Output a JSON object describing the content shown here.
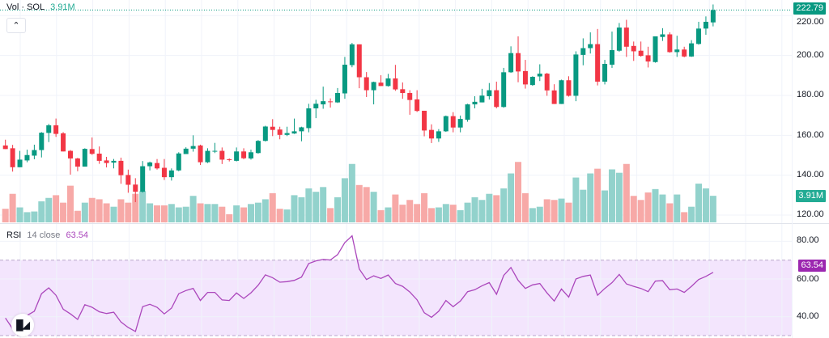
{
  "legend": {
    "vol_label": "Vol · SOL",
    "vol_value": "3.91M"
  },
  "rsi_legend": {
    "name": "RSI",
    "params": "14 close",
    "value": "63.54"
  },
  "badges": {
    "price": "222.79",
    "volume": "3.91M",
    "rsi": "63.54"
  },
  "price_axis": [
    "220.00",
    "200.00",
    "180.00",
    "160.00",
    "140.00",
    "120.00"
  ],
  "rsi_axis": [
    "80.00",
    "60.00",
    "40.00"
  ],
  "logo_text": "TV",
  "colors": {
    "up": "#089981",
    "down": "#F23645",
    "vol_up": "#92D2CC",
    "vol_down": "#F7A9A7",
    "rsi": "#AB47BC",
    "rsi_badge": "#9C27B0",
    "rsi_band": "#F3E5FD"
  },
  "chart_data": {
    "type": "candlestick",
    "symbol": "SOL",
    "price_range": [
      120,
      226
    ],
    "rsi_range": [
      30,
      85
    ],
    "rsi_bands": [
      30,
      70
    ],
    "ohlc": [
      [
        154.9,
        157.8,
        153.1,
        153.1
      ],
      [
        153.5,
        155.2,
        141.8,
        144.0
      ],
      [
        144.0,
        152.2,
        144.0,
        147.8
      ],
      [
        147.4,
        152.8,
        146.5,
        150.1
      ],
      [
        149.8,
        155.3,
        148.0,
        152.6
      ],
      [
        152.6,
        161.6,
        148.9,
        161.3
      ],
      [
        161.2,
        165.7,
        156.6,
        165.0
      ],
      [
        165.0,
        168.4,
        159.2,
        160.7
      ],
      [
        161.0,
        161.6,
        151.9,
        151.9
      ],
      [
        152.2,
        152.6,
        140.3,
        148.4
      ],
      [
        148.4,
        148.7,
        142.0,
        144.3
      ],
      [
        144.3,
        153.5,
        144.3,
        153.2
      ],
      [
        153.1,
        158.9,
        150.2,
        150.7
      ],
      [
        150.8,
        154.4,
        145.7,
        147.2
      ],
      [
        147.4,
        149.2,
        143.9,
        146.1
      ],
      [
        146.3,
        148.1,
        143.4,
        147.2
      ],
      [
        147.2,
        148.8,
        135.7,
        140.0
      ],
      [
        140.1,
        142.8,
        131.2,
        135.2
      ],
      [
        135.3,
        138.5,
        126.5,
        131.7
      ],
      [
        131.7,
        147.1,
        131.3,
        144.5
      ],
      [
        144.5,
        146.8,
        142.4,
        146.4
      ],
      [
        146.1,
        148.1,
        142.8,
        143.4
      ],
      [
        143.7,
        148.1,
        137.6,
        139.0
      ],
      [
        139.0,
        143.4,
        137.3,
        142.4
      ],
      [
        142.4,
        151.5,
        142.0,
        150.9
      ],
      [
        150.6,
        154.0,
        150.6,
        153.3
      ],
      [
        153.3,
        160.0,
        151.8,
        154.6
      ],
      [
        154.9,
        155.3,
        145.1,
        146.5
      ],
      [
        146.5,
        153.5,
        146.1,
        152.2
      ],
      [
        152.2,
        156.2,
        151.1,
        152.2
      ],
      [
        152.2,
        153.9,
        145.6,
        147.8
      ],
      [
        148.0,
        148.4,
        146.9,
        147.8
      ],
      [
        147.2,
        153.9,
        146.9,
        151.9
      ],
      [
        151.9,
        153.5,
        148.0,
        148.5
      ],
      [
        148.4,
        152.8,
        147.8,
        151.5
      ],
      [
        151.1,
        157.6,
        150.8,
        157.2
      ],
      [
        157.2,
        164.8,
        156.9,
        164.4
      ],
      [
        164.3,
        168.1,
        159.6,
        162.7
      ],
      [
        162.9,
        164.3,
        158.0,
        160.2
      ],
      [
        160.2,
        164.3,
        159.6,
        161.1
      ],
      [
        160.9,
        168.4,
        160.7,
        162.0
      ],
      [
        162.0,
        164.3,
        157.0,
        164.0
      ],
      [
        163.6,
        175.8,
        161.5,
        173.5
      ],
      [
        173.5,
        177.8,
        168.6,
        175.8
      ],
      [
        175.5,
        184.4,
        173.3,
        177.1
      ],
      [
        177.0,
        178.5,
        173.9,
        176.8
      ],
      [
        176.5,
        183.7,
        176.2,
        181.2
      ],
      [
        181.0,
        199.3,
        178.3,
        195.4
      ],
      [
        195.2,
        206.3,
        194.1,
        205.6
      ],
      [
        205.6,
        205.6,
        183.6,
        189.1
      ],
      [
        189.1,
        191.7,
        179.2,
        182.6
      ],
      [
        182.6,
        186.9,
        175.5,
        186.7
      ],
      [
        186.4,
        190.1,
        184.7,
        184.7
      ],
      [
        184.7,
        190.8,
        184.4,
        188.5
      ],
      [
        188.5,
        195.3,
        182.3,
        183.0
      ],
      [
        183.1,
        186.5,
        178.3,
        181.2
      ],
      [
        181.2,
        182.6,
        170.3,
        177.7
      ],
      [
        178.0,
        182.6,
        171.7,
        172.2
      ],
      [
        172.3,
        172.3,
        159.5,
        162.4
      ],
      [
        162.7,
        165.5,
        156.1,
        158.4
      ],
      [
        158.4,
        163.1,
        156.7,
        162.0
      ],
      [
        162.0,
        169.9,
        161.7,
        169.6
      ],
      [
        169.6,
        171.6,
        161.5,
        163.9
      ],
      [
        163.9,
        169.9,
        161.5,
        168.2
      ],
      [
        167.8,
        175.8,
        166.8,
        175.5
      ],
      [
        175.5,
        179.6,
        173.5,
        176.8
      ],
      [
        176.5,
        183.3,
        176.5,
        179.9
      ],
      [
        179.6,
        186.2,
        177.9,
        182.6
      ],
      [
        182.6,
        186.9,
        173.5,
        174.2
      ],
      [
        174.2,
        193.8,
        173.8,
        191.6
      ],
      [
        191.6,
        204.6,
        191.3,
        201.2
      ],
      [
        201.2,
        209.6,
        186.6,
        192.0
      ],
      [
        192.2,
        197.8,
        183.4,
        185.5
      ],
      [
        185.2,
        189.6,
        184.8,
        189.3
      ],
      [
        189.5,
        195.6,
        187.2,
        190.9
      ],
      [
        190.9,
        191.3,
        179.8,
        182.5
      ],
      [
        182.5,
        185.6,
        175.7,
        175.7
      ],
      [
        175.7,
        187.9,
        175.7,
        187.6
      ],
      [
        187.6,
        189.6,
        179.4,
        179.8
      ],
      [
        179.8,
        202.1,
        177.1,
        200.5
      ],
      [
        200.3,
        208.6,
        195.1,
        203.7
      ],
      [
        203.7,
        211.6,
        201.0,
        205.7
      ],
      [
        205.7,
        213.3,
        185.0,
        186.9
      ],
      [
        186.9,
        197.8,
        185.5,
        195.8
      ],
      [
        195.4,
        212.0,
        193.8,
        202.7
      ],
      [
        202.4,
        216.3,
        201.9,
        214.0
      ],
      [
        214.0,
        217.9,
        199.3,
        204.4
      ],
      [
        204.8,
        207.0,
        197.3,
        202.1
      ],
      [
        202.4,
        207.0,
        199.4,
        199.8
      ],
      [
        200.1,
        204.4,
        194.0,
        197.0
      ],
      [
        196.7,
        209.6,
        196.4,
        209.6
      ],
      [
        209.3,
        213.7,
        207.3,
        210.6
      ],
      [
        210.6,
        211.6,
        201.4,
        201.7
      ],
      [
        201.7,
        209.9,
        199.3,
        203.0
      ],
      [
        203.0,
        204.4,
        199.1,
        199.5
      ],
      [
        199.5,
        207.7,
        199.3,
        206.1
      ],
      [
        205.8,
        216.9,
        205.4,
        213.5
      ],
      [
        213.5,
        219.6,
        210.4,
        216.9
      ],
      [
        216.6,
        225.6,
        214.6,
        222.79
      ]
    ],
    "volume_millions": [
      2.0,
      4.2,
      2.2,
      1.5,
      1.6,
      3.1,
      3.6,
      4.0,
      2.9,
      5.4,
      1.7,
      2.9,
      3.6,
      3.4,
      2.8,
      2.3,
      3.4,
      2.9,
      4.2,
      4.6,
      2.8,
      2.5,
      2.5,
      2.7,
      2.2,
      2.3,
      3.9,
      2.8,
      2.7,
      2.7,
      2.3,
      1.2,
      2.5,
      2.2,
      2.7,
      2.9,
      3.4,
      4.3,
      2.0,
      1.9,
      4.0,
      3.7,
      5.0,
      4.5,
      5.2,
      2.1,
      3.7,
      6.5,
      8.6,
      5.5,
      5.2,
      4.5,
      1.8,
      2.2,
      4.1,
      2.6,
      3.3,
      2.7,
      4.3,
      2.1,
      2.2,
      2.7,
      2.6,
      1.8,
      2.9,
      3.7,
      3.3,
      4.2,
      4.0,
      5.0,
      7.2,
      8.9,
      4.3,
      2.1,
      2.3,
      3.4,
      3.3,
      3.5,
      2.9,
      6.6,
      4.8,
      7.2,
      7.9,
      4.7,
      7.8,
      7.3,
      8.6,
      3.9,
      3.3,
      4.4,
      4.9,
      4.1,
      2.8,
      4.1,
      1.5,
      2.3,
      5.7,
      5.0,
      3.91
    ],
    "rsi": [
      39.3,
      33.6,
      38.6,
      40.7,
      42.9,
      52.2,
      55.3,
      51.4,
      44.0,
      41.5,
      38.6,
      46.4,
      45.0,
      42.6,
      41.7,
      42.4,
      37.2,
      34.3,
      32.2,
      45.3,
      46.6,
      45.0,
      41.5,
      44.6,
      52.2,
      53.9,
      55.0,
      48.6,
      52.9,
      52.9,
      48.9,
      48.6,
      52.6,
      49.7,
      52.7,
      56.7,
      62.2,
      60.7,
      58.3,
      58.6,
      59.3,
      61.0,
      68.2,
      69.6,
      70.4,
      70.1,
      72.9,
      79.3,
      82.9,
      65.3,
      59.7,
      61.7,
      60.3,
      62.1,
      57.6,
      56.1,
      53.1,
      49.0,
      42.1,
      39.7,
      42.9,
      48.6,
      45.3,
      48.3,
      53.3,
      54.3,
      56.4,
      58.1,
      51.9,
      61.9,
      66.1,
      59.3,
      55.0,
      56.9,
      57.6,
      52.6,
      48.3,
      54.7,
      50.4,
      60.0,
      61.4,
      62.1,
      51.4,
      55.0,
      58.1,
      62.4,
      57.4,
      56.1,
      55.0,
      53.3,
      58.9,
      59.1,
      54.3,
      54.7,
      52.9,
      56.1,
      59.7,
      61.4,
      63.54
    ]
  }
}
